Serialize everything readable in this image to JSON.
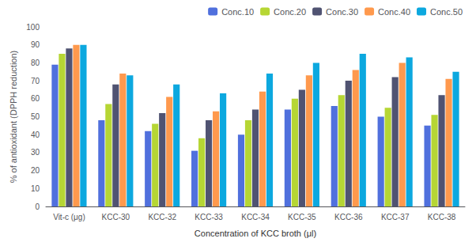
{
  "chart_data": {
    "type": "bar",
    "categories": [
      "Vit-c (μg)",
      "KCC-30",
      "KCC-32",
      "KCC-33",
      "KCC-34",
      "KCC-35",
      "KCC-36",
      "KCC-37",
      "KCC-38"
    ],
    "series": [
      {
        "name": "Conc.10",
        "values": [
          79,
          48,
          42,
          31,
          40,
          54,
          56,
          50,
          45
        ]
      },
      {
        "name": "Conc.20",
        "values": [
          85,
          57,
          46,
          38,
          48,
          60,
          62,
          55,
          51
        ]
      },
      {
        "name": "Conc.30",
        "values": [
          88,
          68,
          52,
          48,
          54,
          65,
          70,
          72,
          62
        ]
      },
      {
        "name": "Conc.40",
        "values": [
          90,
          74,
          61,
          53,
          64,
          73,
          76,
          80,
          71
        ]
      },
      {
        "name": "Conc.50",
        "values": [
          90,
          73,
          68,
          63,
          74,
          80,
          85,
          83,
          75
        ]
      }
    ],
    "ylabel": "% of antioxidant (DPPH reduction)",
    "xlabel": "Concentration of KCC broth (μl)",
    "ylim": [
      0,
      100
    ],
    "yticks": [
      0,
      10,
      20,
      30,
      40,
      50,
      60,
      70,
      80,
      90,
      100
    ],
    "grid": false,
    "legend": "upper right"
  }
}
